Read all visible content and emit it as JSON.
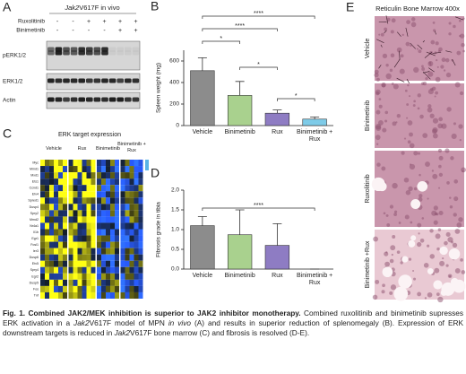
{
  "panel_a": {
    "label": "A",
    "header": [
      {
        "text": "Jak2",
        "style": "italic"
      },
      {
        "text": "V617F in vivo",
        "style": "normal"
      }
    ],
    "treatments": [
      {
        "name": "Ruxolitinib",
        "signs": [
          "-",
          "-",
          "+",
          "+",
          "+",
          "+"
        ]
      },
      {
        "name": "Binimetinib",
        "signs": [
          "-",
          "-",
          "-",
          "-",
          "+",
          "+"
        ]
      }
    ],
    "blots": [
      "pERK1/2",
      "ERK1/2",
      "Actin"
    ]
  },
  "panel_c": {
    "label": "C",
    "title": "ERK target expression",
    "groups": [
      "Vehicle",
      "Rux",
      "Binimetinib",
      "Binimetinib + Rux"
    ],
    "genes": [
      "Myc",
      "Mmd1",
      "Mxd1",
      "Ets1",
      "Ccnd1",
      "Etv4",
      "Spred1",
      "Dusp4",
      "Spry2",
      "Mmd2",
      "Nr4a1",
      "Il1b",
      "Egr1",
      "Fosl1",
      "Ier3",
      "Dusp6",
      "Etv5",
      "Spry4",
      "Egr2",
      "Dusp5",
      "Fos",
      "Tnf"
    ]
  },
  "chart_data": [
    {
      "type": "bar",
      "panel_label": "B",
      "y_label": "Spleen weight (mg)",
      "categories": [
        "Vehicle",
        "Binimetinib",
        "Rux",
        "Binimetinib + Rux"
      ],
      "values": [
        510,
        280,
        115,
        60
      ],
      "errors": [
        120,
        130,
        30,
        20
      ],
      "colors": [
        "#8c8c8c",
        "#a9d18e",
        "#8e7cc3",
        "#7ecbe8"
      ],
      "ylim": [
        0,
        700
      ],
      "yticks": [
        0,
        200,
        400,
        600
      ],
      "significance": [
        {
          "between": [
            "Vehicle",
            "Binimetinib + Rux"
          ],
          "label": "****"
        },
        {
          "between": [
            "Vehicle",
            "Rux"
          ],
          "label": "****"
        },
        {
          "between": [
            "Vehicle",
            "Binimetinib"
          ],
          "label": "*"
        },
        {
          "between": [
            "Binimetinib",
            "Rux"
          ],
          "label": "*"
        },
        {
          "between": [
            "Rux",
            "Binimetinib + Rux"
          ],
          "label": "*"
        }
      ]
    },
    {
      "type": "bar",
      "panel_label": "D",
      "y_label": "Fibrosis grade in tibia",
      "categories": [
        "Vehicle",
        "Binimetinib",
        "Rux",
        "Binimetinib + Rux"
      ],
      "values": [
        1.1,
        0.87,
        0.6,
        0
      ],
      "errors": [
        0.23,
        0.63,
        0.55,
        0
      ],
      "colors": [
        "#8c8c8c",
        "#a9d18e",
        "#8e7cc3",
        "#7ecbe8"
      ],
      "ylim": [
        0,
        2
      ],
      "yticks": [
        {
          "value": 0,
          "label": "0.0"
        },
        0.5,
        {
          "value": 1,
          "label": "1.0"
        },
        1.5,
        {
          "value": 2,
          "label": "2.0"
        }
      ],
      "significance": [
        {
          "between": [
            "Vehicle",
            "Binimetinib + Rux"
          ],
          "label": "****"
        }
      ]
    }
  ],
  "panel_e": {
    "label": "E",
    "title": "Reticulin Bone Marrow 400x",
    "rows": [
      "Vehicle",
      "Binimetinib",
      "Ruxolitinib",
      "Binimetinib +Rux"
    ]
  },
  "caption": [
    {
      "text": "Fig. 1. Combined JAK2/MEK inhibition is superior to JAK2 inhibitor monotherapy.",
      "style": "bold"
    },
    {
      "text": " Combined ruxolitinib and binimetinib supresses ERK activation in a ",
      "style": "normal"
    },
    {
      "text": "Jak2",
      "style": "italic"
    },
    {
      "text": "V617F model of MPN ",
      "style": "normal"
    },
    {
      "text": "in vivo",
      "style": "italic"
    },
    {
      "text": " (A) and results in superior reduction of splenomegaly (B). Expression of ERK downstream targets is reduced in ",
      "style": "normal"
    },
    {
      "text": "Jak2",
      "style": "italic"
    },
    {
      "text": "V617F bone marrow (C) and fibrosis is resolved (D-E).",
      "style": "normal"
    }
  ]
}
